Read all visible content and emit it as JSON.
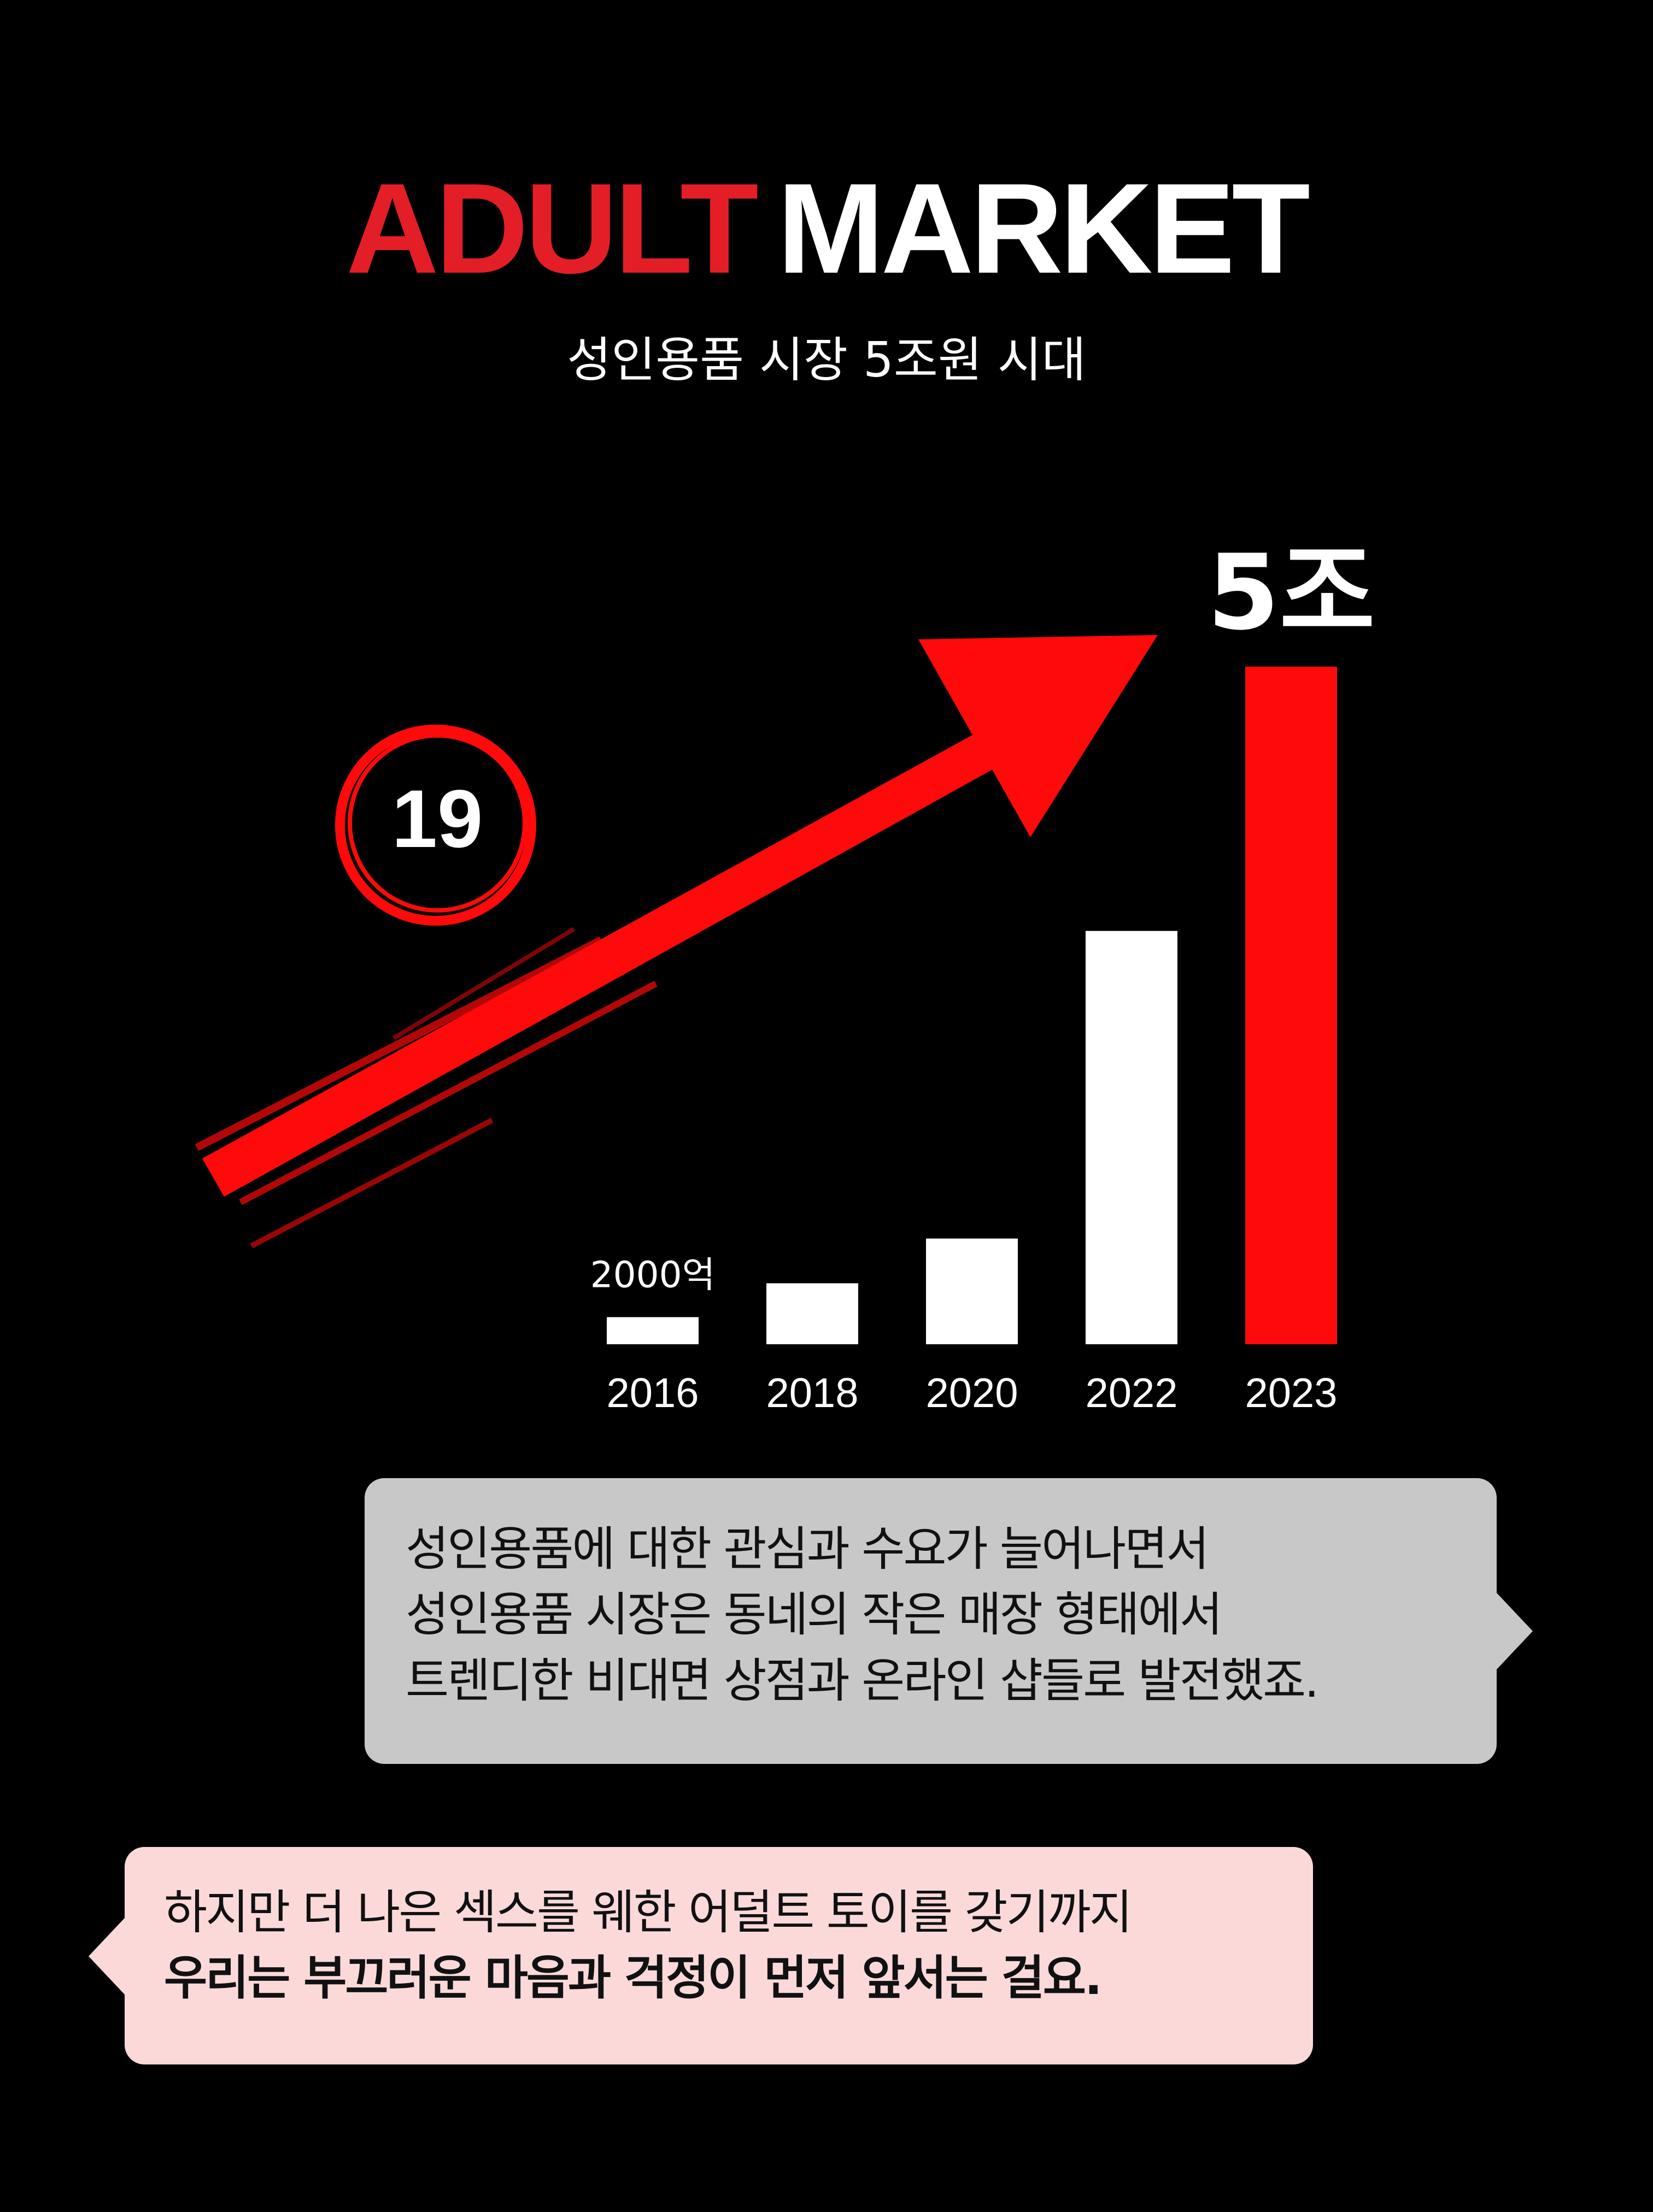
{
  "header": {
    "title_part1": "ADULT",
    "title_part2": "MARKET",
    "subtitle": "성인용품 시장 5조원 시대"
  },
  "badge": {
    "label": "19"
  },
  "colors": {
    "accent": "#e41e26",
    "bar_red": "#ff0a0a",
    "bar_white": "#ffffff",
    "bubble_gray": "#c8c8c8",
    "bubble_pink": "#fcd9d9"
  },
  "chart_data": {
    "type": "bar",
    "categories": [
      "2016",
      "2018",
      "2020",
      "2022",
      "2023"
    ],
    "values": [
      2000,
      4500,
      7800,
      30500,
      50000
    ],
    "value_labels": [
      "2000억",
      "",
      "",
      "",
      "5조"
    ],
    "highlight_index": 4,
    "ylim": [
      0,
      50000
    ],
    "grid": false,
    "xlabel": "",
    "ylabel": "",
    "title": ""
  },
  "bubbles": [
    {
      "lines": [
        "성인용품에 대한 관심과 수요가 늘어나면서",
        "성인용품 시장은 동네의 작은 매장 형태에서",
        "트렌디한 비대면 상점과 온라인 샵들로 발전했죠."
      ]
    },
    {
      "lines": [
        "하지만 더 나은 섹스를 웨한 어덜트 토이를 갖기까지",
        "우리는 부끄러운 마음과 걱정이 먼저 앞서는 걸요."
      ]
    }
  ]
}
